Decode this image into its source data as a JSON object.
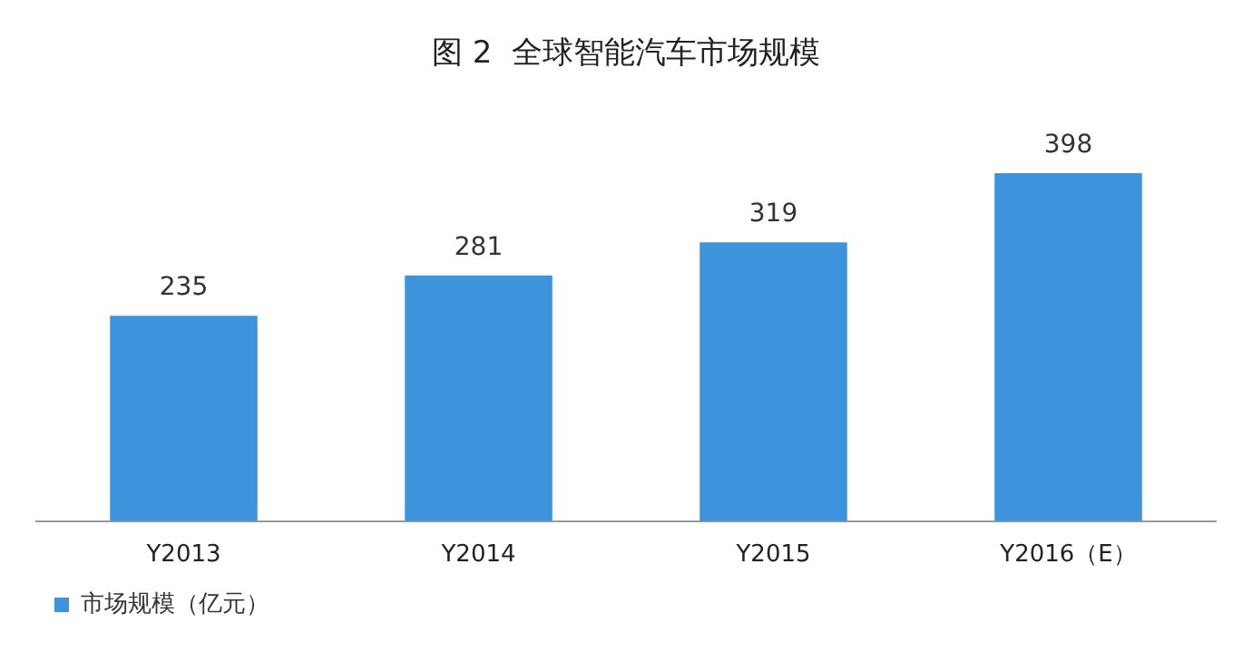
{
  "chart_data": {
    "type": "bar",
    "title": "图 2  全球智能汽车市场规模",
    "categories": [
      "Y2013",
      "Y2014",
      "Y2015",
      "Y2016（E）"
    ],
    "series": [
      {
        "name": "市场规模（亿元）",
        "color": "#3d94dc",
        "values": [
          235,
          281,
          319,
          398
        ]
      }
    ],
    "data_labels": true,
    "legend": "bottom left"
  }
}
